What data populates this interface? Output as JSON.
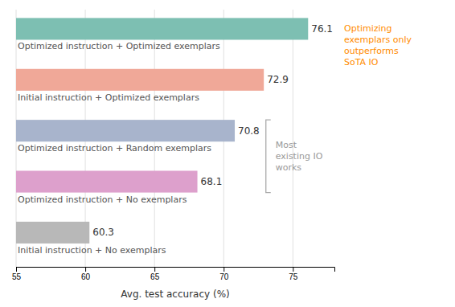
{
  "chart_data": {
    "type": "bar",
    "orientation": "horizontal",
    "categories": [
      "Optimized instruction + Optimized exemplars",
      "Initial instruction + Optimized exemplars",
      "Optimized instruction + Random exemplars",
      "Optimized instruction + No exemplars",
      "Initial instruction + No exemplars"
    ],
    "values": [
      76.1,
      72.9,
      70.8,
      68.1,
      60.3
    ],
    "colors": [
      "#7dbfb2",
      "#f0a898",
      "#a8b4cc",
      "#dda0cc",
      "#b8b8b8"
    ],
    "xlabel": "Avg. test accuracy (%)",
    "xlim": [
      55,
      78
    ],
    "xticks": [
      55,
      60,
      65,
      70,
      75
    ],
    "grid": true,
    "data_labels": true,
    "annotations": [
      {
        "text": "Optimizing\nexemplars only\noutperforms\nSoTA IO",
        "color": "#ff8c00"
      },
      {
        "text": "Most\nexisting IO\nworks",
        "color": "#999999"
      }
    ]
  }
}
